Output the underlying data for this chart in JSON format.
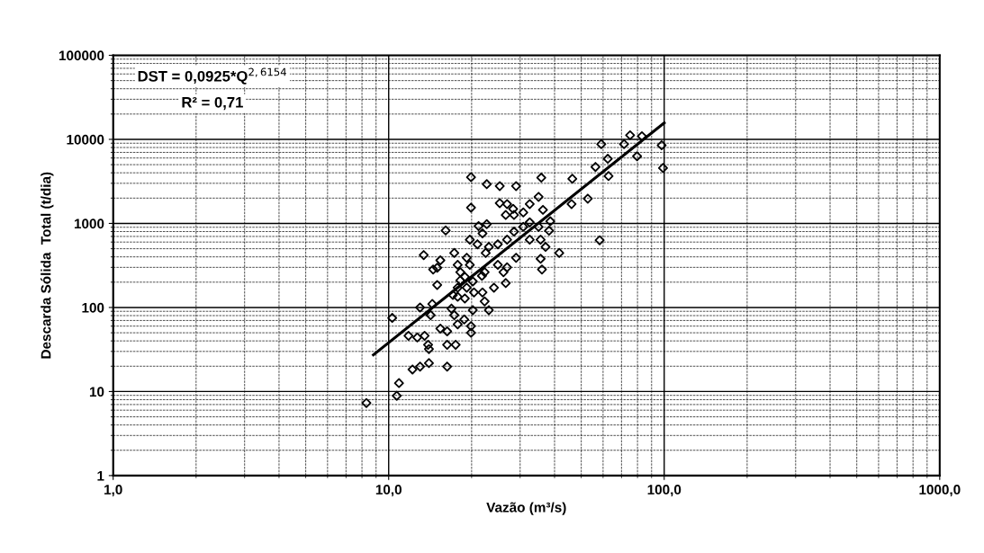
{
  "chart_data": {
    "type": "scatter",
    "xlabel": "Vazão (m³/s)",
    "ylabel": "Descarda Sólida  Total (t/dia)",
    "log": "xy",
    "grid": true,
    "legend": false,
    "xlim": [
      1,
      1000
    ],
    "xticks": [
      {
        "value": 1,
        "label": "1,0"
      },
      {
        "value": 10,
        "label": "10,0"
      },
      {
        "value": 100,
        "label": "100,0"
      },
      {
        "value": 1000,
        "label": "1000,0"
      }
    ],
    "ylim": [
      1,
      100000
    ],
    "yticks": [
      1,
      10,
      100,
      1000,
      10000,
      100000
    ],
    "annotations": [
      "DST = 0,0925*Q$^{2,6154}$",
      "R² = 0,71"
    ],
    "series": [
      {
        "marker": "diamond",
        "color": "#000000",
        "x": [
          8.3,
          10.7,
          10.9,
          10.3,
          11.8,
          12.2,
          13.0,
          14.0,
          16.3,
          13.0,
          14.4,
          14.2,
          13.5,
          12.7,
          13.9,
          14.0,
          15.4,
          16.3,
          16.3,
          17.5,
          16.9,
          17.3,
          17.8,
          18.8,
          19.9,
          20.2,
          19.9,
          23.1,
          22.3,
          21.9,
          20.4,
          18.9,
          17.8,
          17.1,
          17.8,
          15.0,
          19.2,
          20.2,
          21.8,
          24.1,
          26.6,
          18.2,
          18.2,
          18.9,
          17.8,
          19.2,
          19.7,
          22.3,
          15.0,
          15.4,
          14.5,
          13.4,
          17.3,
          16.1,
          19.7,
          21.0,
          21.2,
          22.7,
          21.9,
          23.1,
          22.5,
          24.9,
          26.9,
          28.5,
          30.8,
          32.5,
          35.0,
          35.6,
          35.6,
          36.0,
          32.5,
          29.0,
          26.9,
          26.1,
          24.9,
          19.9,
          25.3,
          26.9,
          28.3,
          26.6,
          28.5,
          30.8,
          32.5,
          35.0,
          19.9,
          22.7,
          25.3,
          29.0,
          35.8,
          59.1,
          75.2,
          71.5,
          83,
          97.9,
          99,
          62.4,
          56.3,
          62.8,
          79.7,
          46.4,
          52.8,
          46.1,
          36.3,
          38.6,
          38.2,
          37.1,
          41.6,
          58.3
        ],
        "values": [
          7.3,
          8.9,
          12.6,
          75,
          46,
          18.3,
          19.8,
          21.8,
          19.8,
          100,
          110,
          81,
          46,
          44,
          36,
          32,
          56,
          52,
          36,
          36,
          97,
          81,
          63,
          72,
          50,
          93,
          60,
          93,
          118,
          151,
          151,
          128,
          134,
          141,
          172,
          185,
          172,
          204,
          238,
          172,
          195,
          263,
          210,
          231,
          321,
          390,
          321,
          263,
          297,
          364,
          283,
          420,
          445,
          825,
          640,
          565,
          930,
          980,
          760,
          525,
          445,
          565,
          640,
          800,
          910,
          1030,
          910,
          640,
          380,
          283,
          640,
          390,
          300,
          263,
          321,
          1540,
          1740,
          1700,
          1490,
          1260,
          1260,
          1350,
          1700,
          2070,
          3550,
          2930,
          2780,
          2780,
          3500,
          8770,
          11200,
          8770,
          10900,
          8500,
          4570,
          5870,
          4700,
          3660,
          6300,
          3400,
          1970,
          1700,
          1450,
          1060,
          820,
          525,
          445,
          630
        ]
      },
      {
        "type": "line",
        "color": "#000000",
        "x": [
          8.8,
          100
        ],
        "values": [
          27.3,
          15700
        ]
      }
    ]
  }
}
